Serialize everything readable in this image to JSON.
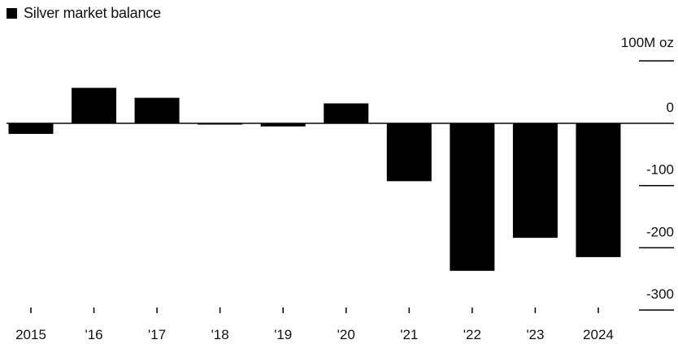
{
  "chart_data": {
    "type": "bar",
    "legend": {
      "label": "Silver market balance"
    },
    "y_axis": {
      "unit_label": "100M oz",
      "ticks": [
        0,
        -100,
        -200,
        -300
      ],
      "tick_labels": [
        "0",
        "-100",
        "-200",
        "-300"
      ],
      "ylim": [
        -300,
        100
      ],
      "grid": false,
      "position": "right"
    },
    "categories": [
      "2015",
      "'16",
      "'17",
      "'18",
      "'19",
      "'20",
      "'21",
      "'22",
      "'23",
      "2024"
    ],
    "values": [
      -17,
      57,
      41,
      -2,
      -5,
      32,
      -93,
      -237,
      -184,
      -215
    ],
    "colors": {
      "bars": "#000000",
      "axis": "#000000",
      "text": "#111111"
    }
  }
}
